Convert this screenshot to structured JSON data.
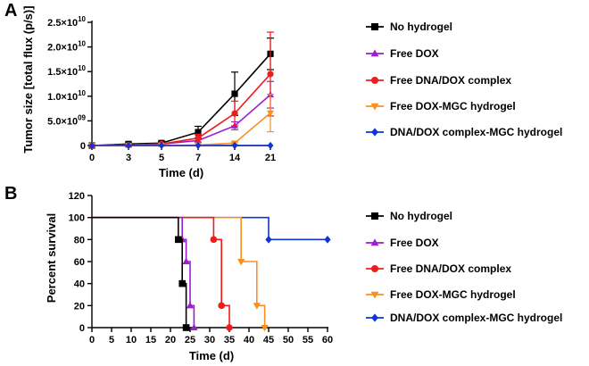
{
  "chart_data": [
    {
      "panel": "A",
      "type": "line",
      "xlabel": "Time (d)",
      "ylabel": "Tumor size [total flux (p/s)]",
      "xlim": [
        0,
        21
      ],
      "ylim": [
        0,
        25000000000
      ],
      "x": [
        0,
        3,
        5,
        7,
        14,
        21
      ],
      "x_tick_labels": [
        "0",
        "3",
        "5",
        "7",
        "14",
        "21"
      ],
      "y_ticks": [
        0,
        5000000000,
        10000000000,
        15000000000,
        20000000000,
        25000000000
      ],
      "y_tick_labels": [
        {
          "base": "0",
          "exp": ""
        },
        {
          "base": "5.0×10",
          "exp": "09"
        },
        {
          "base": "1.0×10",
          "exp": "10"
        },
        {
          "base": "1.5×10",
          "exp": "10"
        },
        {
          "base": "2.0×10",
          "exp": "10"
        },
        {
          "base": "2.5×10",
          "exp": "10"
        }
      ],
      "series": [
        {
          "name": "No hydrogel",
          "color": "#000000",
          "marker": "square",
          "values": [
            0,
            300000000,
            500000000,
            2700000000,
            10500000000,
            18600000000
          ],
          "errors": [
            0,
            200000000,
            300000000,
            1200000000,
            4400000000,
            3200000000
          ]
        },
        {
          "name": "Free DOX",
          "color": "#9b1fd1",
          "marker": "triangle-up",
          "values": [
            0,
            100000000,
            300000000,
            1000000000,
            4000000000,
            10300000000
          ],
          "errors": [
            0,
            100000000,
            200000000,
            300000000,
            800000000,
            2700000000
          ]
        },
        {
          "name": "Free DNA/DOX complex",
          "color": "#ee1c1c",
          "marker": "circle",
          "values": [
            0,
            100000000,
            300000000,
            1500000000,
            6500000000,
            14500000000
          ],
          "errors": [
            0,
            100000000,
            200000000,
            800000000,
            2500000000,
            8500000000
          ]
        },
        {
          "name": "Free DOX-MGC hydrogel",
          "color": "#f7901e",
          "marker": "triangle-down",
          "values": [
            0,
            0,
            0,
            100000000,
            500000000,
            6600000000
          ],
          "errors": [
            0,
            0,
            0,
            100000000,
            200000000,
            3800000000
          ]
        },
        {
          "name": "DNA/DOX complex-MGC hydrogel",
          "color": "#1034d6",
          "marker": "diamond",
          "values": [
            0,
            0,
            0,
            0,
            0,
            0
          ],
          "errors": [
            0,
            0,
            0,
            0,
            0,
            0
          ]
        }
      ]
    },
    {
      "panel": "B",
      "type": "line",
      "subtype": "survival-step",
      "xlabel": "Time (d)",
      "ylabel": "Percent survival",
      "xlim": [
        0,
        60
      ],
      "ylim": [
        0,
        120
      ],
      "x_ticks": [
        0,
        5,
        10,
        15,
        20,
        25,
        30,
        35,
        40,
        45,
        50,
        55,
        60
      ],
      "y_ticks": [
        0,
        20,
        40,
        60,
        80,
        100,
        120
      ],
      "series": [
        {
          "name": "No hydrogel",
          "color": "#000000",
          "marker": "square",
          "steps": [
            [
              0,
              100
            ],
            [
              22,
              80
            ],
            [
              23,
              40
            ],
            [
              24,
              0
            ]
          ]
        },
        {
          "name": "Free DOX",
          "color": "#9b1fd1",
          "marker": "triangle-up",
          "steps": [
            [
              0,
              100
            ],
            [
              23,
              80
            ],
            [
              24,
              60
            ],
            [
              25,
              20
            ],
            [
              26,
              0
            ]
          ]
        },
        {
          "name": "Free DNA/DOX complex",
          "color": "#ee1c1c",
          "marker": "circle",
          "steps": [
            [
              0,
              100
            ],
            [
              31,
              80
            ],
            [
              33,
              20
            ],
            [
              35,
              0
            ]
          ]
        },
        {
          "name": "Free DOX-MGC hydrogel",
          "color": "#f7901e",
          "marker": "triangle-down",
          "steps": [
            [
              0,
              100
            ],
            [
              38,
              60
            ],
            [
              42,
              20
            ],
            [
              44,
              0
            ]
          ]
        },
        {
          "name": "DNA/DOX complex-MGC hydrogel",
          "color": "#1034d6",
          "marker": "diamond",
          "steps": [
            [
              0,
              100
            ],
            [
              45,
              80
            ],
            [
              60,
              80
            ]
          ]
        }
      ]
    }
  ]
}
